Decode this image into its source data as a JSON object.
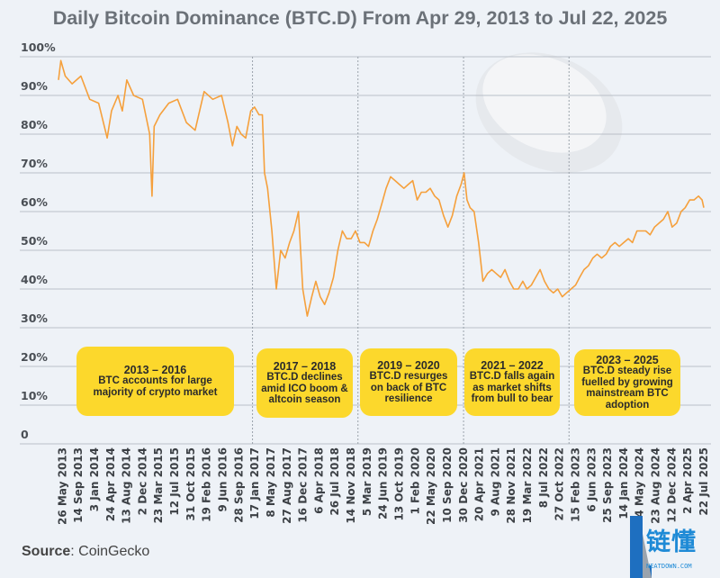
{
  "chart_data": {
    "type": "line",
    "title": "Daily Bitcoin Dominance (BTC.D) From Apr 29, 2013 to Jul 22, 2025",
    "ylim": [
      0,
      100
    ],
    "yticks": [
      "0",
      "10%",
      "20%",
      "30%",
      "40%",
      "50%",
      "60%",
      "70%",
      "80%",
      "90%",
      "100%"
    ],
    "xlim": [
      "2013-04-29",
      "2025-07-22"
    ],
    "grid": "horizontal",
    "line_color": "#f5a03c",
    "xticks": [
      "26 May 2013",
      "14 Sep 2013",
      "3 Jan 2014",
      "24 Apr 2014",
      "13 Aug 2014",
      "2 Dec 2014",
      "23 Mar 2015",
      "12 Jul 2015",
      "31 Oct 2015",
      "19 Feb 2016",
      "9 Jun 2016",
      "28 Sep 2016",
      "17 Jan 2017",
      "8 May 2017",
      "27 Aug 2017",
      "16 Dec 2017",
      "6 Apr 2018",
      "26 Jul 2018",
      "14 Nov 2018",
      "5 Mar 2019",
      "24 Jun 2019",
      "13 Oct 2019",
      "1 Feb 2020",
      "22 May 2020",
      "10 Sep 2020",
      "30 Dec 2020",
      "20 Apr 2021",
      "9 Aug 2021",
      "28 Nov 2021",
      "19 Mar 2022",
      "8 Jul 2022",
      "27 Oct 2022",
      "15 Feb 2023",
      "6 Jun 2023",
      "25 Sep 2023",
      "14 Jan 2024",
      "4 May 2024",
      "23 Aug 2024",
      "12 Dec 2024",
      "2 Apr 2025",
      "22 Jul 2025"
    ],
    "series": [
      {
        "x": [
          "2013-04-29",
          "2013-05-15",
          "2013-06-15",
          "2013-08-01",
          "2013-10-01",
          "2013-12-01",
          "2014-02-01",
          "2014-04-01",
          "2014-05-01",
          "2014-06-15",
          "2014-07-15",
          "2014-08-15",
          "2014-10-01",
          "2014-12-01",
          "2015-01-20",
          "2015-02-05",
          "2015-02-20",
          "2015-04-01",
          "2015-06-01",
          "2015-08-01",
          "2015-10-01",
          "2015-12-01",
          "2016-02-01",
          "2016-04-01",
          "2016-06-01",
          "2016-07-15",
          "2016-08-15",
          "2016-09-15",
          "2016-10-15",
          "2016-11-15",
          "2016-12-20",
          "2017-01-15",
          "2017-02-15",
          "2017-03-10",
          "2017-03-25",
          "2017-04-15",
          "2017-05-15",
          "2017-06-15",
          "2017-07-15",
          "2017-08-15",
          "2017-09-15",
          "2017-10-15",
          "2017-11-15",
          "2017-12-15",
          "2018-01-15",
          "2018-02-15",
          "2018-03-15",
          "2018-04-15",
          "2018-05-15",
          "2018-06-15",
          "2018-07-15",
          "2018-08-15",
          "2018-09-15",
          "2018-10-15",
          "2018-11-15",
          "2018-12-15",
          "2019-01-15",
          "2019-02-15",
          "2019-03-15",
          "2019-04-15",
          "2019-05-15",
          "2019-06-15",
          "2019-07-15",
          "2019-08-15",
          "2019-09-15",
          "2019-10-15",
          "2019-11-15",
          "2019-12-15",
          "2020-01-15",
          "2020-02-15",
          "2020-03-15",
          "2020-04-15",
          "2020-05-15",
          "2020-06-15",
          "2020-07-15",
          "2020-08-15",
          "2020-09-15",
          "2020-10-15",
          "2020-11-15",
          "2020-12-15",
          "2021-01-05",
          "2021-01-25",
          "2021-02-15",
          "2021-03-15",
          "2021-04-15",
          "2021-05-15",
          "2021-06-15",
          "2021-07-15",
          "2021-08-15",
          "2021-09-15",
          "2021-10-15",
          "2021-11-15",
          "2021-12-15",
          "2022-01-15",
          "2022-02-15",
          "2022-03-15",
          "2022-04-15",
          "2022-05-15",
          "2022-06-15",
          "2022-07-15",
          "2022-08-15",
          "2022-09-15",
          "2022-10-15",
          "2022-11-15",
          "2022-12-15",
          "2023-01-15",
          "2023-02-15",
          "2023-03-15",
          "2023-04-15",
          "2023-05-15",
          "2023-06-15",
          "2023-07-15",
          "2023-08-15",
          "2023-09-15",
          "2023-10-15",
          "2023-11-15",
          "2023-12-15",
          "2024-01-15",
          "2024-02-15",
          "2024-03-15",
          "2024-04-15",
          "2024-05-15",
          "2024-06-15",
          "2024-07-15",
          "2024-08-15",
          "2024-09-15",
          "2024-10-15",
          "2024-11-15",
          "2024-12-15",
          "2025-01-15",
          "2025-02-15",
          "2025-03-15",
          "2025-04-15",
          "2025-05-15",
          "2025-06-15",
          "2025-07-10",
          "2025-07-22"
        ],
        "y": [
          94,
          99,
          95,
          93,
          95,
          89,
          88,
          79,
          86,
          90,
          86,
          94,
          90,
          89,
          80,
          64,
          82,
          85,
          88,
          89,
          83,
          81,
          91,
          89,
          90,
          83,
          77,
          82,
          80,
          79,
          86,
          87,
          85,
          85,
          70,
          66,
          55,
          40,
          50,
          48,
          52,
          55,
          60,
          40,
          33,
          38,
          42,
          38,
          36,
          39,
          43,
          50,
          55,
          53,
          53,
          55,
          52,
          52,
          51,
          55,
          58,
          62,
          66,
          69,
          68,
          67,
          66,
          67,
          68,
          63,
          65,
          65,
          66,
          64,
          63,
          59,
          56,
          59,
          64,
          67,
          70,
          63,
          61,
          60,
          52,
          42,
          44,
          45,
          44,
          43,
          45,
          42,
          40,
          40,
          42,
          40,
          41,
          43,
          45,
          42,
          40,
          39,
          40,
          38,
          39,
          40,
          41,
          43,
          45,
          46,
          48,
          49,
          48,
          49,
          51,
          52,
          51,
          52,
          53,
          52,
          55,
          55,
          55,
          54,
          56,
          57,
          58,
          60,
          56,
          57,
          60,
          61,
          63,
          63,
          64,
          63,
          61
        ]
      }
    ],
    "periods": [
      {
        "years": "2013 – 2016",
        "text": "BTC accounts for large majority of crypto market",
        "start": "2013-04-29",
        "end": "2016-12-31"
      },
      {
        "years": "2017 – 2018",
        "text": "BTC.D declines amid ICO boom & altcoin season",
        "start": "2017-01-01",
        "end": "2018-12-31"
      },
      {
        "years": "2019 – 2020",
        "text": "BTC.D resurges on back of BTC resilience",
        "start": "2019-01-01",
        "end": "2020-12-31"
      },
      {
        "years": "2021 – 2022",
        "text": "BTC.D falls again as market shifts from bull to bear",
        "start": "2021-01-01",
        "end": "2022-12-31"
      },
      {
        "years": "2023 – 2025",
        "text": "BTC.D steady rise fuelled by growing mainstream BTC adoption",
        "start": "2023-01-01",
        "end": "2025-07-22"
      }
    ],
    "highlight_color": "#fcd82c"
  },
  "source": {
    "label": "Source",
    "value": ": CoinGecko"
  },
  "logo": {
    "text": "链懂",
    "sub": "NEATDOWN.COM"
  }
}
